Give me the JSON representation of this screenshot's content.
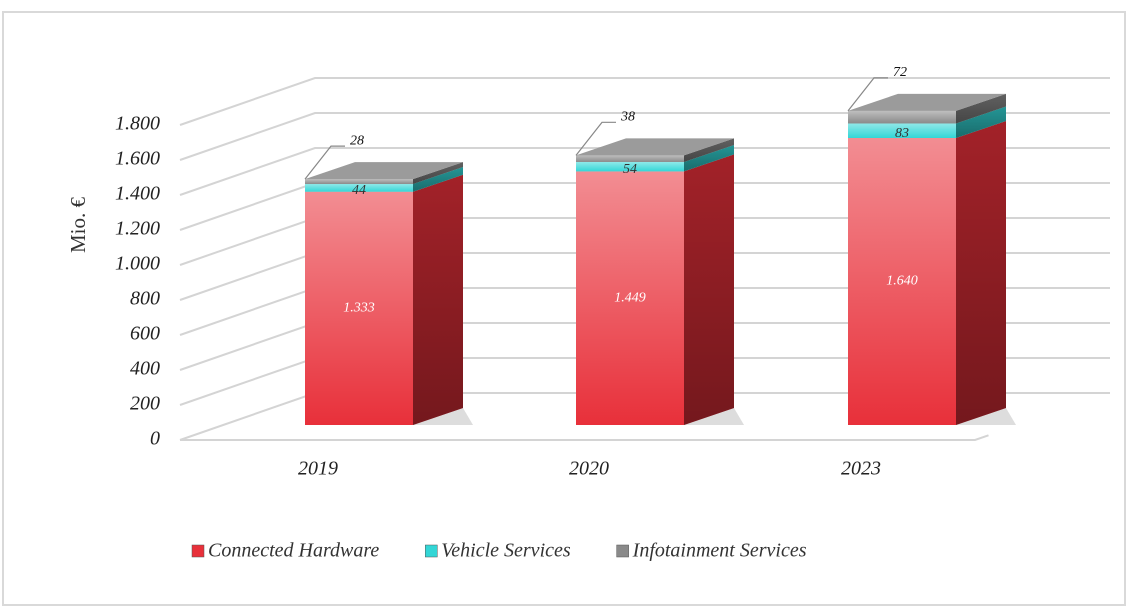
{
  "chart_data": {
    "type": "bar3d_stacked",
    "y_axis_label": "Mio. €",
    "categories": [
      "2019",
      "2020",
      "2023"
    ],
    "series": [
      {
        "name": "Connected Hardware",
        "color": "#e8303a",
        "values": [
          1333,
          1449,
          1640
        ],
        "value_labels": [
          "1.333",
          "1.449",
          "1.640"
        ]
      },
      {
        "name": "Vehicle Services",
        "color": "#33d6d6",
        "values": [
          44,
          54,
          83
        ]
      },
      {
        "name": "Infotainment Services",
        "color": "#8a8a8a",
        "values": [
          28,
          38,
          72
        ]
      }
    ],
    "ylim": [
      0,
      1800
    ],
    "yticks": [
      0,
      200,
      400,
      600,
      800,
      {
        "value": 1000,
        "label": "1.000"
      },
      {
        "value": 1200,
        "label": "1.200"
      },
      {
        "value": 1400,
        "label": "1.400"
      },
      {
        "value": 1600,
        "label": "1.600"
      },
      {
        "value": 1800,
        "label": "1.800"
      }
    ],
    "grid": true,
    "legend": "bottom"
  }
}
